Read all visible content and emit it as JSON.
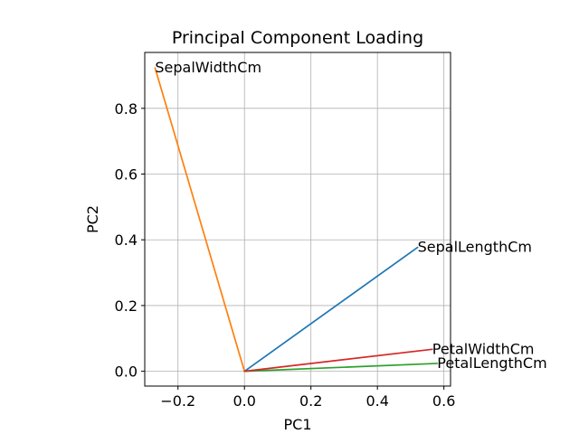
{
  "chart_data": {
    "type": "line",
    "title": "Principal Component Loading",
    "xlabel": "PC1",
    "ylabel": "PC2",
    "xlim": [
      -0.3,
      0.62
    ],
    "ylim": [
      -0.045,
      0.97
    ],
    "xticks": [
      -0.2,
      0.0,
      0.2,
      0.4,
      0.6
    ],
    "xtick_labels": [
      "−0.2",
      "0.0",
      "0.2",
      "0.4",
      "0.6"
    ],
    "yticks": [
      0.0,
      0.2,
      0.4,
      0.6,
      0.8
    ],
    "ytick_labels": [
      "0.0",
      "0.2",
      "0.4",
      "0.6",
      "0.8"
    ],
    "grid": true,
    "series": [
      {
        "name": "SepalLengthCm",
        "color": "#1f77b4",
        "x": [
          0,
          0.521
        ],
        "y": [
          0,
          0.377
        ]
      },
      {
        "name": "SepalWidthCm",
        "color": "#ff7f0e",
        "x": [
          0,
          -0.269
        ],
        "y": [
          0,
          0.923
        ]
      },
      {
        "name": "PetalLengthCm",
        "color": "#2ca02c",
        "x": [
          0,
          0.58
        ],
        "y": [
          0,
          0.024
        ]
      },
      {
        "name": "PetalWidthCm",
        "color": "#d62728",
        "x": [
          0,
          0.565
        ],
        "y": [
          0,
          0.067
        ]
      }
    ]
  }
}
